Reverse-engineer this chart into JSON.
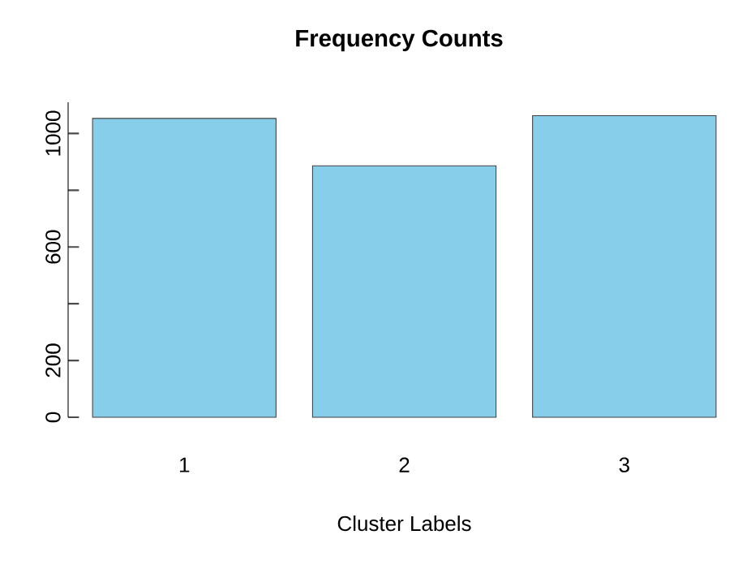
{
  "chart_data": {
    "type": "bar",
    "title": "Frequency Counts",
    "xlabel": "Cluster Labels",
    "categories": [
      "1",
      "2",
      "3"
    ],
    "values": [
      1053,
      886,
      1063
    ],
    "color": "#87ceeb",
    "ylim": [
      0,
      1110
    ],
    "yticks": [
      0,
      200,
      {
        "value": 400,
        "label": null
      },
      600,
      {
        "value": 800,
        "label": null
      },
      1000
    ]
  }
}
